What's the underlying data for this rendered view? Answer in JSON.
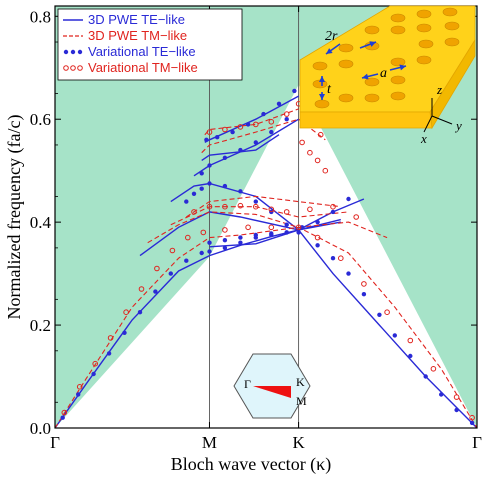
{
  "chart_data": {
    "type": "line",
    "title": "",
    "xlabel": "Bloch wave vector (κ)",
    "ylabel": "Normalized frequency (fa/c)",
    "x_ticks": [
      "Γ",
      "M",
      "K",
      "Γ"
    ],
    "x_positions": [
      0,
      1,
      1.577,
      2.732
    ],
    "ylim": [
      0,
      0.82
    ],
    "y_ticks": [
      "0.0",
      "0.2",
      "0.4",
      "0.6",
      "0.8"
    ],
    "y_tick_values": [
      0,
      0.2,
      0.4,
      0.6,
      0.8
    ],
    "grid": false,
    "legend_position": "top-left",
    "colors": {
      "te": "#2a2ad6",
      "tm": "#e0241f",
      "light_cone": "#a6e3c8",
      "vertical_lines": "#555555"
    },
    "light_cone": {
      "x": [
        0,
        1,
        1.577,
        2.732
      ],
      "y": [
        0,
        0.333,
        0.667,
        0
      ]
    },
    "series": [
      {
        "name": "3D PWE TE−like",
        "kind": "te-line",
        "x": [
          0,
          0.2,
          0.5,
          0.8,
          1.0,
          1.2,
          1.4,
          1.577,
          1.8,
          2.1,
          2.4,
          2.732
        ],
        "y": [
          0,
          0.085,
          0.21,
          0.305,
          0.335,
          0.355,
          0.372,
          0.385,
          0.3,
          0.2,
          0.1,
          0
        ]
      },
      {
        "name": "",
        "kind": "te-line",
        "x": [
          1.577,
          1.8,
          2.0
        ],
        "y": [
          0.385,
          0.42,
          0.445
        ]
      },
      {
        "name": "",
        "kind": "te-line",
        "x": [
          1.0,
          1.3,
          1.577,
          1.85
        ],
        "y": [
          0.352,
          0.358,
          0.385,
          0.405
        ]
      },
      {
        "name": "",
        "kind": "te-line",
        "x": [
          0.55,
          0.8,
          1.0,
          1.2,
          1.577,
          1.85
        ],
        "y": [
          0.335,
          0.39,
          0.42,
          0.41,
          0.385,
          0.4
        ]
      },
      {
        "name": "",
        "kind": "te-line",
        "x": [
          0.75,
          0.9,
          1.0,
          1.3,
          1.577
        ],
        "y": [
          0.44,
          0.47,
          0.475,
          0.45,
          0.385
        ]
      },
      {
        "name": "",
        "kind": "te-line",
        "x": [
          0.9,
          1.0,
          1.3,
          1.577
        ],
        "y": [
          0.49,
          0.51,
          0.55,
          0.6
        ]
      },
      {
        "name": "",
        "kind": "te-line",
        "x": [
          0.95,
          1.0,
          1.3,
          1.45
        ],
        "y": [
          0.52,
          0.53,
          0.54,
          0.57
        ]
      },
      {
        "name": "",
        "kind": "te-line",
        "x": [
          0.97,
          1.0,
          1.3,
          1.577
        ],
        "y": [
          0.555,
          0.56,
          0.6,
          0.645
        ]
      },
      {
        "name": "3D PWE TM−like",
        "kind": "tm-line",
        "x": [
          0,
          0.2,
          0.5,
          0.8,
          1.0,
          1.2,
          1.45,
          1.577,
          1.9,
          2.2,
          2.5,
          2.732
        ],
        "y": [
          0,
          0.095,
          0.235,
          0.33,
          0.37,
          0.375,
          0.385,
          0.39,
          0.34,
          0.235,
          0.115,
          0
        ]
      },
      {
        "name": "",
        "kind": "tm-line",
        "x": [
          0.6,
          0.8,
          1.0,
          1.3,
          1.577,
          1.9,
          2.15
        ],
        "y": [
          0.36,
          0.395,
          0.42,
          0.415,
          0.39,
          0.4,
          0.37
        ]
      },
      {
        "name": "",
        "kind": "tm-line",
        "x": [
          0.75,
          1.0,
          1.3,
          1.577,
          1.9
        ],
        "y": [
          0.395,
          0.43,
          0.43,
          0.41,
          0.42
        ]
      },
      {
        "name": "",
        "kind": "tm-line",
        "x": [
          0.85,
          1.0,
          1.3,
          1.577,
          1.85
        ],
        "y": [
          0.41,
          0.44,
          0.45,
          0.44,
          0.43
        ]
      },
      {
        "name": "",
        "kind": "tm-line",
        "x": [
          0.95,
          1.0,
          1.3,
          1.577,
          1.75
        ],
        "y": [
          0.535,
          0.55,
          0.575,
          0.6,
          0.56
        ]
      },
      {
        "name": "",
        "kind": "tm-line",
        "x": [
          0.97,
          1.0,
          1.3,
          1.577
        ],
        "y": [
          0.57,
          0.58,
          0.59,
          0.62
        ]
      },
      {
        "name": "Variational TE−like",
        "kind": "te-dots",
        "x": [
          0.05,
          0.15,
          0.25,
          0.35,
          0.45,
          0.55,
          0.65,
          0.75,
          0.85,
          0.95,
          1.0,
          1.1,
          1.2,
          1.3,
          1.4,
          1.5,
          1.577,
          1.7,
          1.8,
          1.9,
          2.0,
          2.1,
          2.2,
          2.3,
          2.4,
          2.5,
          2.6,
          2.7
        ],
        "y": [
          0.02,
          0.065,
          0.105,
          0.145,
          0.185,
          0.225,
          0.265,
          0.3,
          0.325,
          0.34,
          0.343,
          0.35,
          0.36,
          0.37,
          0.375,
          0.38,
          0.38,
          0.355,
          0.33,
          0.3,
          0.26,
          0.22,
          0.18,
          0.14,
          0.1,
          0.065,
          0.035,
          0.01
        ]
      },
      {
        "name": "",
        "kind": "te-dots",
        "x": [
          1.0,
          1.1,
          1.2,
          1.3,
          1.4,
          1.5,
          1.6,
          1.7,
          1.8,
          1.9
        ],
        "y": [
          0.36,
          0.365,
          0.37,
          0.375,
          0.378,
          0.38,
          0.39,
          0.4,
          0.42,
          0.445
        ]
      },
      {
        "name": "",
        "kind": "te-dots",
        "x": [
          0.85,
          0.9,
          0.95,
          1.0,
          1.1,
          1.2,
          1.3,
          1.4,
          1.5
        ],
        "y": [
          0.44,
          0.455,
          0.465,
          0.475,
          0.47,
          0.46,
          0.44,
          0.42,
          0.395
        ]
      },
      {
        "name": "",
        "kind": "te-dots",
        "x": [
          0.95,
          1.0,
          1.1,
          1.2,
          1.3,
          1.4,
          1.5
        ],
        "y": [
          0.495,
          0.51,
          0.525,
          0.54,
          0.555,
          0.575,
          0.6
        ]
      },
      {
        "name": "",
        "kind": "te-dots",
        "x": [
          0.98,
          1.05,
          1.15,
          1.25,
          1.35,
          1.45,
          1.55
        ],
        "y": [
          0.56,
          0.565,
          0.575,
          0.59,
          0.61,
          0.63,
          0.655
        ]
      },
      {
        "name": "Variational TM−like",
        "kind": "tm-circles",
        "x": [
          0.06,
          0.16,
          0.26,
          0.36,
          0.46,
          0.56,
          0.66,
          0.76,
          0.86,
          0.96,
          1.1,
          1.25,
          1.4,
          1.577,
          1.7,
          1.85,
          2.0,
          2.15,
          2.3,
          2.45,
          2.6,
          2.7
        ],
        "y": [
          0.03,
          0.08,
          0.125,
          0.175,
          0.225,
          0.27,
          0.31,
          0.345,
          0.37,
          0.38,
          0.385,
          0.39,
          0.39,
          0.39,
          0.37,
          0.33,
          0.28,
          0.225,
          0.17,
          0.115,
          0.06,
          0.02
        ]
      },
      {
        "name": "",
        "kind": "tm-circles",
        "x": [
          0.9,
          1.0,
          1.1,
          1.2,
          1.3,
          1.4,
          1.5,
          1.65,
          1.8,
          1.95
        ],
        "y": [
          0.42,
          0.43,
          0.43,
          0.432,
          0.43,
          0.425,
          0.42,
          0.425,
          0.43,
          0.41
        ]
      },
      {
        "name": "",
        "kind": "tm-circles",
        "x": [
          1.0,
          1.1,
          1.2,
          1.3,
          1.4,
          1.5,
          1.577,
          1.65,
          1.72
        ],
        "y": [
          0.575,
          0.58,
          0.585,
          0.59,
          0.595,
          0.61,
          0.63,
          0.6,
          0.57
        ]
      },
      {
        "name": "",
        "kind": "tm-circles",
        "x": [
          1.6,
          1.65,
          1.7,
          1.75
        ],
        "y": [
          0.555,
          0.535,
          0.52,
          0.5
        ]
      }
    ]
  },
  "inset_bz": {
    "labels": {
      "gamma": "Γ",
      "k": "K",
      "m": "M"
    },
    "colors": {
      "hexagon_fill": "#dff5fb",
      "wedge": "#ee1111"
    }
  },
  "inset_crystal": {
    "labels": {
      "radius": "2r",
      "thickness": "t",
      "lattice": "a",
      "axis_x": "x",
      "axis_y": "y",
      "axis_z": "z"
    },
    "colors": {
      "slab": "#ffd21a",
      "slab_edge": "#e3a600",
      "arrows": "#1d3fd6"
    }
  }
}
